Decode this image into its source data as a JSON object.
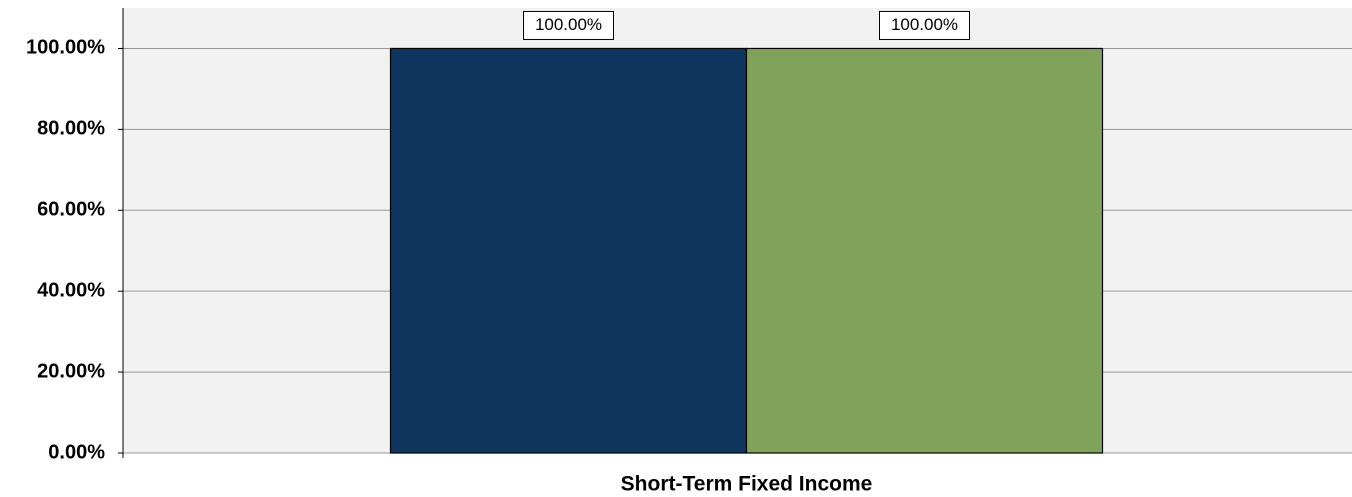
{
  "chart_data": {
    "type": "bar",
    "categories": [
      "Short-Term Fixed Income"
    ],
    "series": [
      {
        "color": "#0e355e",
        "values": [
          100
        ],
        "value_labels": [
          "100.00%"
        ]
      },
      {
        "color": "#80a25a",
        "values": [
          100
        ],
        "value_labels": [
          "100.00%"
        ]
      }
    ],
    "ylim": [
      0,
      110
    ],
    "yticks": [
      {
        "value": 0,
        "label": "0.00%"
      },
      {
        "value": 20,
        "label": "20.00%"
      },
      {
        "value": 40,
        "label": "40.00%"
      },
      {
        "value": 60,
        "label": "60.00%"
      },
      {
        "value": 80,
        "label": "80.00%"
      },
      {
        "value": 100,
        "label": "100.00%"
      }
    ],
    "grid": true
  }
}
